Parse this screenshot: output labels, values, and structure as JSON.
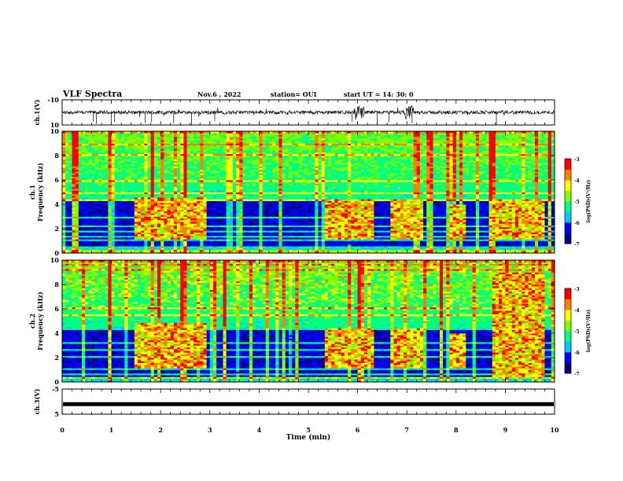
{
  "header": {
    "title": "VLF Spectra",
    "date": "Nov.6  , 2022",
    "station": "station= OUI",
    "start": "start  UT =   14: 30: 0"
  },
  "colors": {
    "cmap": [
      "#000080",
      "#0000ff",
      "#00c8ff",
      "#00ff80",
      "#80ff00",
      "#ffff00",
      "#ff8000",
      "#ff0000",
      "#ffffff"
    ],
    "trace": "#000000"
  },
  "chart_data": [
    {
      "type": "line",
      "name": "ch1-waveform",
      "ylabel": "ch.1(V)",
      "ylim": [
        -10,
        10
      ],
      "yticks": [
        "10",
        "-10"
      ],
      "xlim": [
        0,
        10
      ],
      "baseline": 0,
      "bursts_min": [
        6.0,
        6.05,
        7.0,
        7.05
      ]
    },
    {
      "type": "heatmap",
      "name": "ch1-spectrogram",
      "ylabel": "ch.1\nFrequency  (kHz)",
      "xlim": [
        0,
        10
      ],
      "ylim": [
        0,
        10
      ],
      "yticks": [
        "0",
        "2",
        "4",
        "6",
        "8",
        "10"
      ],
      "colorbar": {
        "label": "log(PSD)(V²/Hz)",
        "range": [
          -7,
          -3
        ],
        "ticks": [
          "-3",
          "-4",
          "-5",
          "-6",
          "-7"
        ]
      },
      "signal_bands": [
        {
          "t0": 1.5,
          "t1": 2.9,
          "f0": 1.2,
          "f1": 4.6
        },
        {
          "t0": 5.35,
          "t1": 6.35,
          "f0": 1.2,
          "f1": 4.4
        },
        {
          "t0": 6.7,
          "t1": 7.35,
          "f0": 1.2,
          "f1": 4.4
        },
        {
          "t0": 7.85,
          "t1": 8.2,
          "f0": 1.2,
          "f1": 4.0
        },
        {
          "t0": 8.75,
          "t1": 9.8,
          "f0": 1.2,
          "f1": 4.4
        }
      ]
    },
    {
      "type": "heatmap",
      "name": "ch2-spectrogram",
      "ylabel": "ch.2\nFrequency  (kHz)",
      "xlim": [
        0,
        10
      ],
      "ylim": [
        0,
        10
      ],
      "yticks": [
        "0",
        "2",
        "4",
        "6",
        "8",
        "10"
      ],
      "colorbar": {
        "label": "log(PSD)(V²/Hz)",
        "range": [
          -7,
          -3
        ],
        "ticks": [
          "-3",
          "-4",
          "-5",
          "-6",
          "-7"
        ]
      },
      "signal_bands": [
        {
          "t0": 1.5,
          "t1": 2.9,
          "f0": 1.2,
          "f1": 4.8
        },
        {
          "t0": 5.35,
          "t1": 6.35,
          "f0": 1.2,
          "f1": 4.4
        },
        {
          "t0": 6.7,
          "t1": 7.35,
          "f0": 1.2,
          "f1": 4.4
        },
        {
          "t0": 7.85,
          "t1": 8.2,
          "f0": 1.2,
          "f1": 4.0
        },
        {
          "t0": 8.75,
          "t1": 9.8,
          "f0": 0.4,
          "f1": 9.0
        }
      ]
    },
    {
      "type": "line",
      "name": "ch3-waveform",
      "ylabel": "ch.3(V)",
      "ylim": [
        -5,
        5
      ],
      "yticks": [
        "5",
        "-5"
      ],
      "xlim": [
        0,
        10
      ],
      "baseline": -1
    }
  ],
  "xaxis": {
    "label": "Time  (min)",
    "ticks": [
      "0",
      "1",
      "2",
      "3",
      "4",
      "5",
      "6",
      "7",
      "8",
      "9",
      "10"
    ]
  }
}
